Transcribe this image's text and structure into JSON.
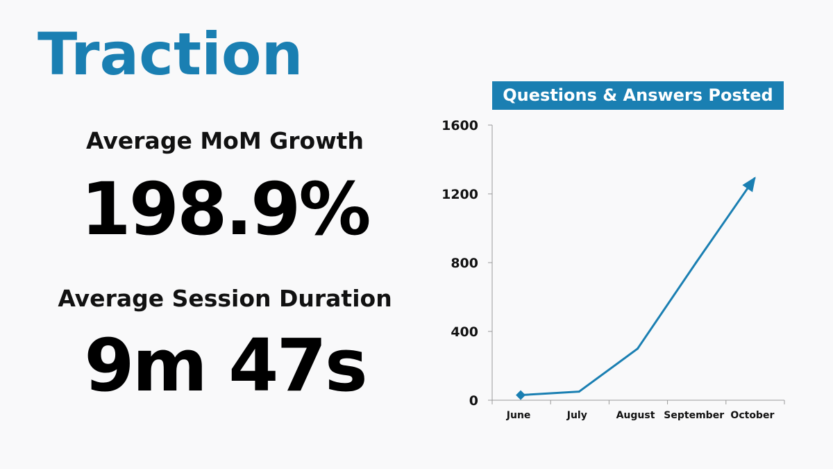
{
  "slide": {
    "title": "Traction"
  },
  "metrics": {
    "growth_label": "Average MoM Growth",
    "growth_value": "198.9%",
    "session_label": "Average Session Duration",
    "session_value": "9m 47s"
  },
  "colors": {
    "accent": "#1a7fb2",
    "text": "#000000",
    "background": "#f9f9fa"
  },
  "chart_data": {
    "type": "line",
    "title": "Questions & Answers Posted",
    "categories": [
      "June",
      "July",
      "August",
      "September",
      "October"
    ],
    "y_ticks": [
      "0",
      "400",
      "800",
      "1200",
      "1600"
    ],
    "ylim": [
      0,
      1600
    ],
    "series": [
      {
        "values": [
          30,
          50,
          300,
          800,
          1290
        ],
        "color": "#1a7fb2",
        "start_marker": "diamond",
        "end_marker": "arrow"
      }
    ],
    "grid": false,
    "legend": "none"
  }
}
